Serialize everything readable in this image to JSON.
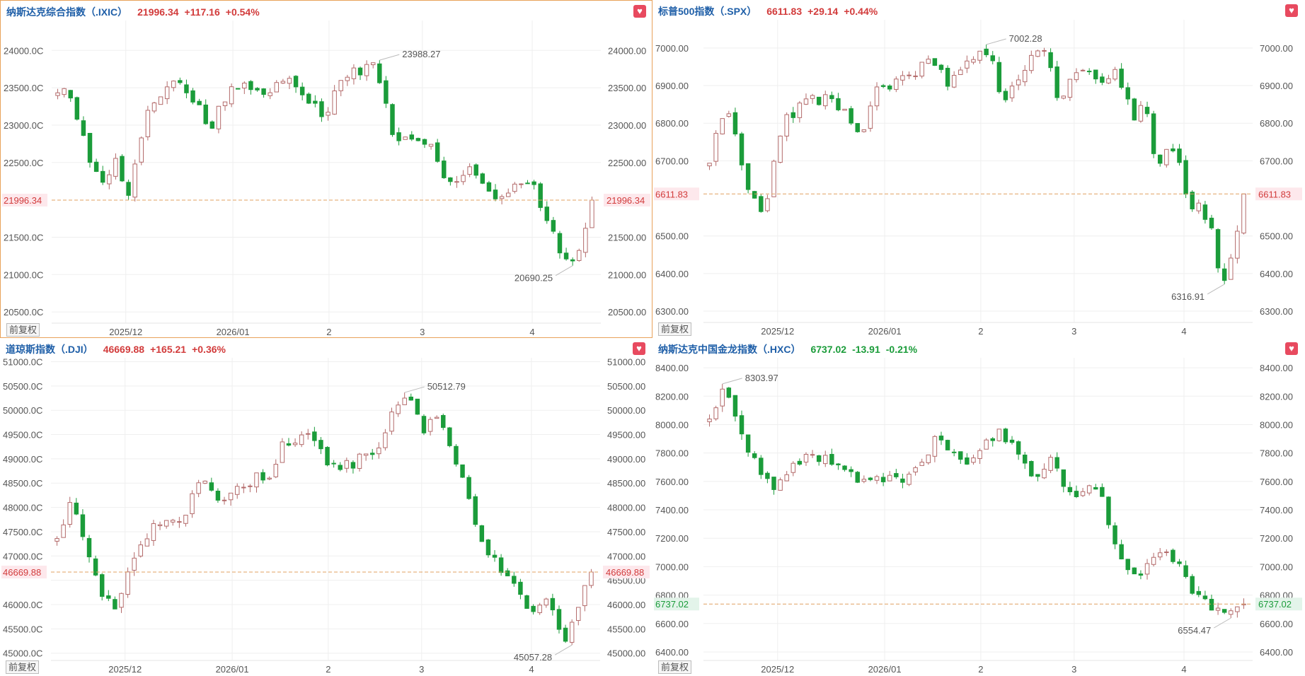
{
  "colors": {
    "up": "#d23b3b",
    "down": "#1b9c3a",
    "grid": "#efefef",
    "refline": "#e0a060",
    "axis_text": "#555555",
    "title": "#1f5fa8",
    "up_candle_stroke": "#b36a6a"
  },
  "restore_label": "前复权",
  "fav_icon": "heart-icon",
  "panels": [
    {
      "id": "ixic",
      "name": "纳斯达克综合指数（.IXIC）",
      "last": "21996.34",
      "change": "+117.16",
      "pct": "+0.54%",
      "trend": "up",
      "active": true,
      "chart_data": {
        "type": "candlestick",
        "y_ticks": [
          "24000.00",
          "23500.00",
          "23000.00",
          "22500.00",
          "21500.00",
          "21000.00",
          "20500.00"
        ],
        "left_ticks": [
          "24000.0C",
          "23500.0C",
          "23000.0C",
          "22500.0C",
          "21500.0C",
          "21000.0C",
          "20500.0C"
        ],
        "ylim": [
          20350,
          24400
        ],
        "x_labels": [
          "2025/12",
          "2026/01",
          "2",
          "3",
          "4"
        ],
        "current_label": "21996.34",
        "current": 21996.34,
        "high_label": "23988.27",
        "low_label": "20690.25",
        "anchors": [
          23470,
          23420,
          22950,
          22400,
          22260,
          22550,
          22000,
          22800,
          23250,
          23430,
          23600,
          23480,
          23300,
          22930,
          23260,
          23500,
          23550,
          23470,
          23340,
          23570,
          23680,
          23450,
          23300,
          23100,
          23570,
          23700,
          23730,
          23900,
          23450,
          22700,
          22850,
          22740,
          22850,
          22380,
          22240,
          22400,
          22340,
          22100,
          22000,
          22160,
          22250,
          22140,
          21700,
          21450,
          21050,
          21300,
          22000
        ]
      }
    },
    {
      "id": "spx",
      "name": "标普500指数（.SPX）",
      "last": "6611.83",
      "change": "+29.14",
      "pct": "+0.44%",
      "trend": "up",
      "active": false,
      "chart_data": {
        "type": "candlestick",
        "y_ticks": [
          "7000.00",
          "6900.00",
          "6800.00",
          "6700.00",
          "6500.00",
          "6400.00",
          "6300.00"
        ],
        "left_ticks": [
          "7000.00",
          "6900.00",
          "6800.00",
          "6700.00",
          "6500.00",
          "6400.00",
          "6300.00"
        ],
        "ylim": [
          6270,
          7075
        ],
        "x_labels": [
          "2025/12",
          "2026/01",
          "2",
          "3",
          "4"
        ],
        "current_label": "6611.83",
        "current": 6611.83,
        "high_label": "7002.28",
        "low_label": "6316.91",
        "anchors": [
          6700,
          6800,
          6850,
          6670,
          6600,
          6550,
          6720,
          6810,
          6830,
          6870,
          6860,
          6880,
          6840,
          6800,
          6750,
          6880,
          6910,
          6900,
          6930,
          6940,
          6960,
          6950,
          6900,
          6930,
          6980,
          6990,
          6970,
          6840,
          6900,
          6950,
          6990,
          6980,
          6850,
          6920,
          6960,
          6930,
          6900,
          6950,
          6870,
          6820,
          6850,
          6680,
          6730,
          6700,
          6560,
          6580,
          6520,
          6350,
          6450,
          6620
        ]
      }
    },
    {
      "id": "dji",
      "name": "道琼斯指数（.DJI）",
      "last": "46669.88",
      "change": "+165.21",
      "pct": "+0.36%",
      "trend": "up",
      "active": false,
      "chart_data": {
        "type": "candlestick",
        "y_ticks": [
          "51000.00",
          "50500.00",
          "50000.00",
          "49500.00",
          "49000.00",
          "48500.00",
          "48000.00",
          "47500.00",
          "47000.00",
          "46500.00",
          "46000.00",
          "45500.00",
          "45000.00"
        ],
        "left_ticks": [
          "51000.0C",
          "50500.0C",
          "50000.0C",
          "49500.0C",
          "49000.0C",
          "48500.0C",
          "48000.0C",
          "47500.0C",
          "47000.0C",
          "46000.0C",
          "45500.0C",
          "45000.0C"
        ],
        "ylim": [
          44850,
          51080
        ],
        "x_labels": [
          "2025/12",
          "2026/01",
          "2",
          "3",
          "4"
        ],
        "current_label": "46669.88",
        "current": 46669.88,
        "high_label": "50512.79",
        "low_label": "45057.28",
        "anchors": [
          47400,
          48100,
          47300,
          46300,
          45900,
          46600,
          47300,
          47700,
          47700,
          47600,
          48600,
          48300,
          48200,
          48400,
          48600,
          48600,
          49300,
          49400,
          49500,
          49000,
          48800,
          48900,
          49100,
          49300,
          50000,
          50300,
          49600,
          49800,
          49300,
          48500,
          47400,
          47000,
          46600,
          46200,
          45800,
          46100,
          45200,
          45800,
          46700
        ]
      }
    },
    {
      "id": "hxc",
      "name": "纳斯达克中国金龙指数（.HXC）",
      "last": "6737.02",
      "change": "-13.91",
      "pct": "-0.21%",
      "trend": "down",
      "active": false,
      "chart_data": {
        "type": "candlestick",
        "y_ticks": [
          "8400.00",
          "8200.00",
          "8000.00",
          "7800.00",
          "7600.00",
          "7400.00",
          "7200.00",
          "7000.00",
          "6800.00",
          "6600.00",
          "6400.00"
        ],
        "left_ticks": [
          "8400.00",
          "8200.00",
          "8000.00",
          "7800.00",
          "7600.00",
          "7400.00",
          "7200.00",
          "7000.00",
          "6800.00",
          "6600.00",
          "6400.00"
        ],
        "ylim": [
          6340,
          8470
        ],
        "x_labels": [
          "2025/12",
          "2026/01",
          "2",
          "3",
          "4"
        ],
        "current_label": "6737.02",
        "current": 6737.02,
        "high_label": "8303.97",
        "low_label": "6554.47",
        "anchors": [
          8050,
          8260,
          7900,
          7700,
          7500,
          7720,
          7780,
          7760,
          7700,
          7620,
          7600,
          7640,
          7600,
          7720,
          7900,
          7820,
          7700,
          7850,
          7950,
          7800,
          7600,
          7780,
          7560,
          7500,
          7580,
          7200,
          6900,
          7000,
          7100,
          7050,
          6800,
          6700,
          6650,
          6740
        ]
      }
    }
  ]
}
